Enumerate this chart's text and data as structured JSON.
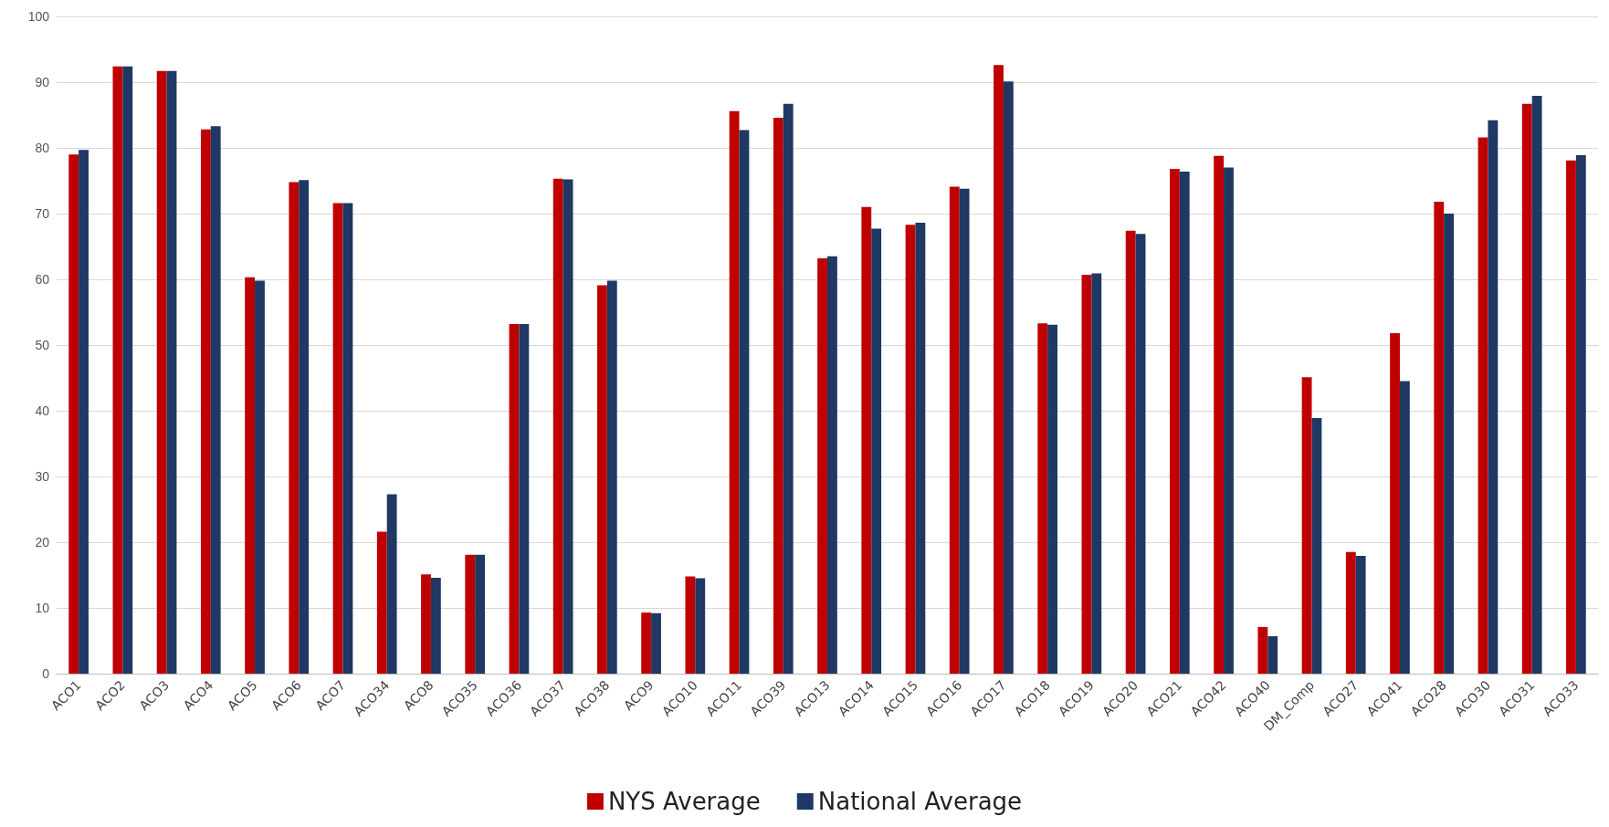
{
  "chart_data": {
    "type": "bar",
    "categories": [
      "ACO1",
      "ACO2",
      "ACO3",
      "ACO4",
      "ACO5",
      "ACO6",
      "ACO7",
      "ACO34",
      "ACO8",
      "ACO35",
      "ACO36",
      "ACO37",
      "ACO38",
      "ACO9",
      "ACO10",
      "ACO11",
      "ACO39",
      "ACO13",
      "ACO14",
      "ACO15",
      "ACO16",
      "ACO17",
      "ACO18",
      "ACO19",
      "ACO20",
      "ACO21",
      "ACO42",
      "ACO40",
      "DM_Comp",
      "ACO27",
      "ACO41",
      "ACO28",
      "ACO30",
      "ACO31",
      "ACO33"
    ],
    "series": [
      {
        "name": "NYS Average",
        "color": "#c00000",
        "values": [
          79.0,
          92.4,
          91.7,
          82.8,
          60.3,
          74.8,
          71.6,
          21.6,
          15.1,
          18.1,
          53.2,
          75.3,
          59.1,
          9.3,
          14.8,
          85.6,
          84.6,
          63.2,
          71.0,
          68.3,
          74.1,
          92.6,
          53.3,
          60.7,
          67.4,
          76.8,
          78.8,
          7.1,
          45.1,
          18.5,
          51.8,
          71.8,
          81.6,
          86.7,
          78.1
        ]
      },
      {
        "name": "National Average",
        "color": "#1f3864",
        "values": [
          79.7,
          92.4,
          91.7,
          83.3,
          59.8,
          75.1,
          71.6,
          27.3,
          14.6,
          18.1,
          53.2,
          75.2,
          59.8,
          9.2,
          14.5,
          82.7,
          86.7,
          63.5,
          67.7,
          68.6,
          73.8,
          90.1,
          53.1,
          60.9,
          66.9,
          76.4,
          77.0,
          5.7,
          38.9,
          17.9,
          44.5,
          70.0,
          84.2,
          87.9,
          78.9
        ]
      }
    ],
    "ylim": [
      0,
      100
    ],
    "yticks": [
      0,
      10,
      20,
      30,
      40,
      50,
      60,
      70,
      80,
      90,
      100
    ],
    "grid": "y",
    "legend": "bottom"
  }
}
